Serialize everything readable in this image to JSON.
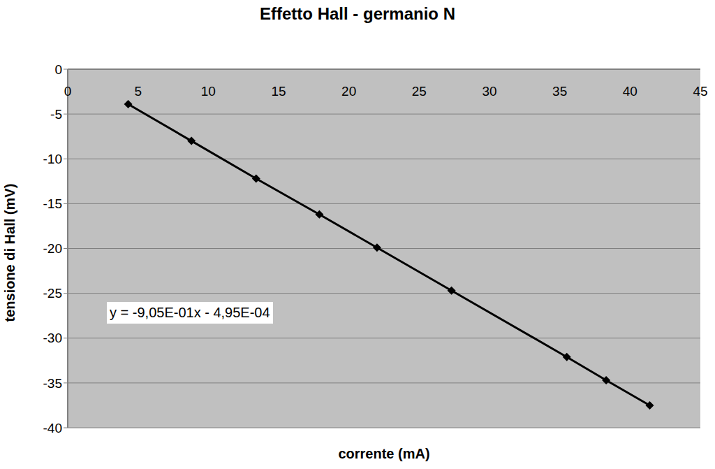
{
  "chart_data": {
    "type": "line",
    "title": "Effetto Hall - germanio N",
    "x_label": "corrente (mA)",
    "y_label": "tensione di Hall (mV)",
    "annotation": "y = -9,05E-01x - 4,95E-04",
    "x": [
      4.3,
      8.8,
      13.4,
      17.9,
      22.0,
      27.3,
      35.5,
      38.3,
      41.4
    ],
    "series": [
      {
        "name": "tensione di Hall",
        "color": "#000000",
        "marker": "diamond",
        "line_style": "solid",
        "values": [
          -3.9,
          -8.0,
          -12.2,
          -16.2,
          -19.9,
          -24.7,
          -32.1,
          -34.7,
          -37.5
        ]
      }
    ],
    "xlim": [
      0,
      45
    ],
    "xticks": [
      0,
      5,
      10,
      15,
      20,
      25,
      30,
      35,
      40,
      45
    ],
    "ylim": [
      -40,
      0
    ],
    "yticks": [
      -40,
      -35,
      -30,
      -25,
      -20,
      -15,
      -10,
      -5,
      0
    ],
    "grid": true
  }
}
